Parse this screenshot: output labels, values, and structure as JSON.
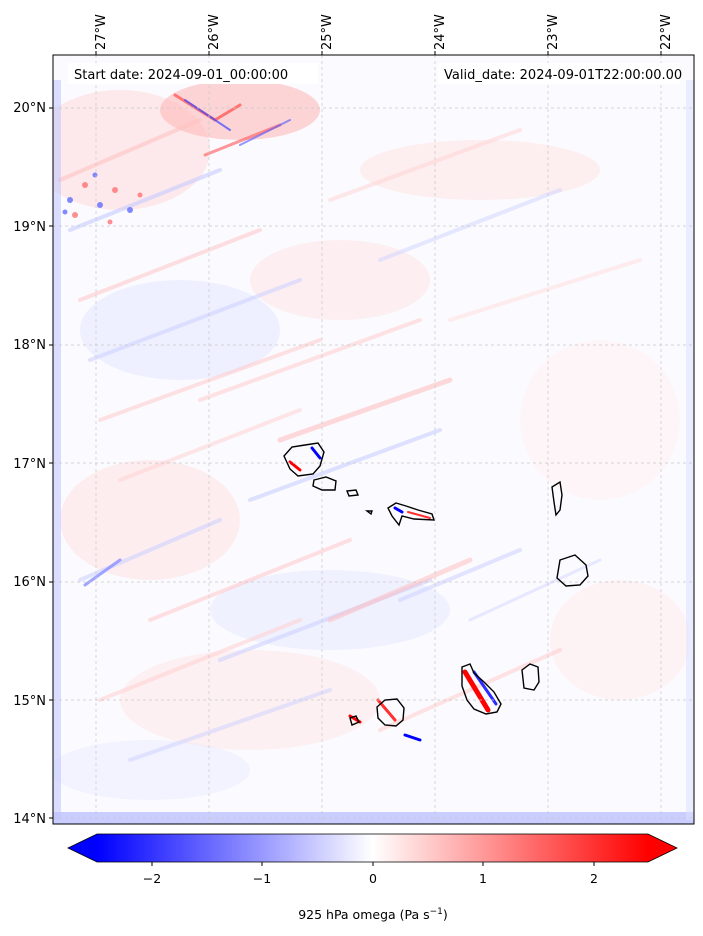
{
  "map": {
    "start_label": "Start date: 2024-09-01_00:00:00",
    "valid_label": "Valid_date: 2024-09-01T22:00:00.00",
    "lon_ticks": [
      "27°W",
      "26°W",
      "25°W",
      "24°W",
      "23°W",
      "22°W"
    ],
    "lat_ticks": [
      "20°N",
      "19°N",
      "18°N",
      "17°N",
      "16°N",
      "15°N",
      "14°N"
    ],
    "lon_values": [
      -27,
      -26,
      -25,
      -24,
      -23,
      -22
    ],
    "lat_values": [
      20,
      19,
      18,
      17,
      16,
      15,
      14
    ],
    "lon_range": [
      -27.3,
      -21.7
    ],
    "lat_range": [
      13.95,
      20.4
    ],
    "gridlines": true,
    "field": "925 hPa vertical velocity (omega)",
    "colormap": "bwr"
  },
  "colorbar": {
    "label_main": "925 hPa omega (Pa s",
    "label_exp": "−1",
    "label_close": ")",
    "ticks": [
      "−2",
      "−1",
      "0",
      "1",
      "2"
    ],
    "tick_values": [
      -2,
      -1,
      0,
      1,
      2
    ],
    "range": [
      -2.5,
      2.5
    ],
    "extend": "both",
    "colors": {
      "min": "#0000ff",
      "mid": "#ffffff",
      "max": "#ff0000"
    }
  }
}
